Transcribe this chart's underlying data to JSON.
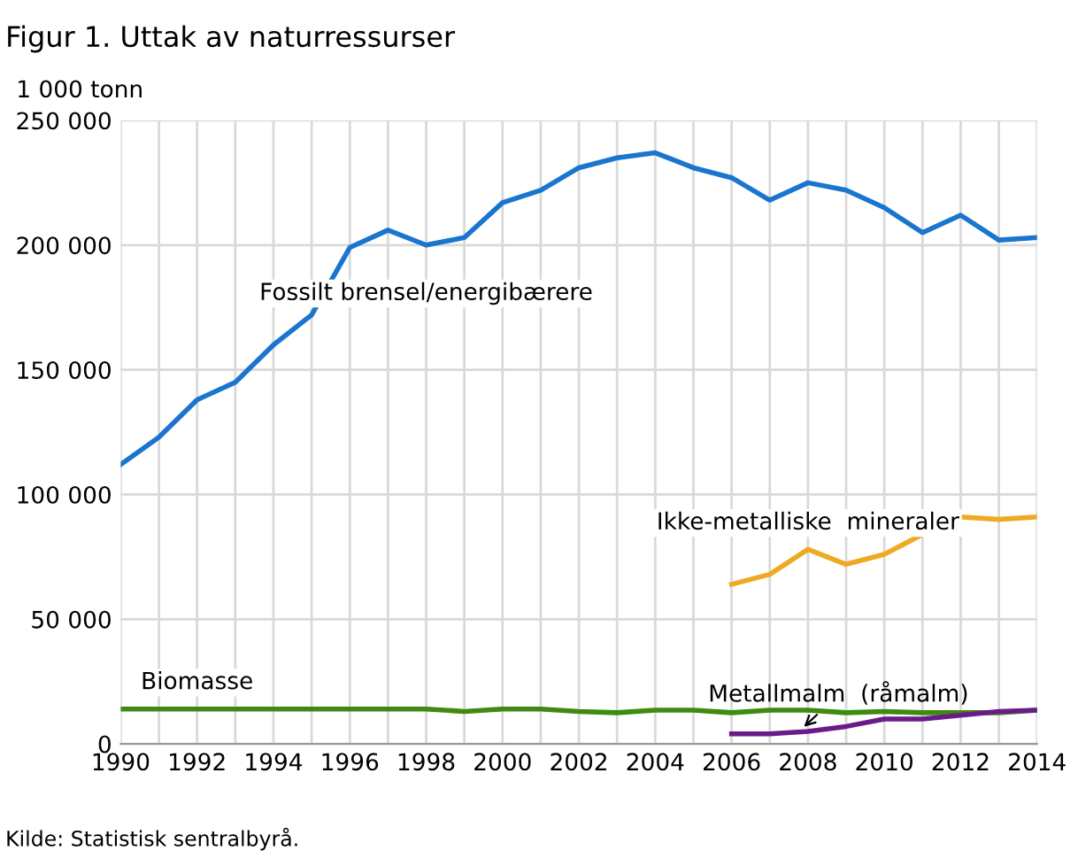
{
  "chart_data": {
    "type": "line",
    "title": "Figur 1. Uttak av naturressurser",
    "ylabel": "1 000 tonn",
    "x": [
      1990,
      1991,
      1992,
      1993,
      1994,
      1995,
      1996,
      1997,
      1998,
      1999,
      2000,
      2001,
      2002,
      2003,
      2004,
      2005,
      2006,
      2007,
      2008,
      2009,
      2010,
      2011,
      2012,
      2013,
      2014
    ],
    "series": [
      {
        "name": "Fossilt brensel/energibærere",
        "color": "#1a75cf",
        "values": [
          112000,
          123000,
          138000,
          145000,
          160000,
          172000,
          199000,
          206000,
          200000,
          203000,
          217000,
          222000,
          231000,
          235000,
          237000,
          231000,
          227000,
          218000,
          225000,
          222000,
          215000,
          205000,
          212000,
          202000,
          203000
        ]
      },
      {
        "name": "Ikke-metalliske  mineraler",
        "color": "#eeaa22",
        "values": [
          null,
          null,
          null,
          null,
          null,
          null,
          null,
          null,
          null,
          null,
          null,
          null,
          null,
          null,
          null,
          null,
          64000,
          68000,
          78000,
          72000,
          76000,
          84000,
          91000,
          90000,
          91000
        ]
      },
      {
        "name": "Biomasse",
        "color": "#3d8b0f",
        "values": [
          14000,
          14000,
          14000,
          14000,
          14000,
          14000,
          14000,
          14000,
          14000,
          13000,
          14000,
          14000,
          13000,
          12500,
          13500,
          13500,
          12500,
          13500,
          13500,
          12500,
          13000,
          12500,
          12500,
          12500,
          13500
        ]
      },
      {
        "name": "Metallmalm  (råmalm)",
        "color": "#6a1b8a",
        "values": [
          null,
          null,
          null,
          null,
          null,
          null,
          null,
          null,
          null,
          null,
          null,
          null,
          null,
          null,
          null,
          null,
          4000,
          4000,
          5000,
          7000,
          10000,
          10000,
          11500,
          13000,
          13500
        ]
      }
    ],
    "xlim": [
      1990,
      2014
    ],
    "ylim": [
      0,
      250000
    ],
    "xticks": [
      1990,
      {
        "value": 1991,
        "label": null
      },
      1992,
      {
        "value": 1993,
        "label": null
      },
      1994,
      {
        "value": 1995,
        "label": null
      },
      1996,
      {
        "value": 1997,
        "label": null
      },
      1998,
      {
        "value": 1999,
        "label": null
      },
      2000,
      {
        "value": 2001,
        "label": null
      },
      2002,
      {
        "value": 2003,
        "label": null
      },
      2004,
      {
        "value": 2005,
        "label": null
      },
      2006,
      {
        "value": 2007,
        "label": null
      },
      2008,
      {
        "value": 2009,
        "label": null
      },
      2010,
      {
        "value": 2011,
        "label": null
      },
      2012,
      {
        "value": 2013,
        "label": null
      },
      2014
    ],
    "yticks": [
      {
        "value": 0,
        "label": "0"
      },
      {
        "value": 50000,
        "label": "50 000"
      },
      {
        "value": 100000,
        "label": "100 000"
      },
      {
        "value": 150000,
        "label": "150 000"
      },
      {
        "value": 200000,
        "label": "200 000"
      },
      {
        "value": 250000,
        "label": "250 000"
      }
    ],
    "grid": true,
    "legend": false,
    "marker": "none",
    "line_style": "solid",
    "annotations": [
      "Kilde: Statistisk sentralbyrå."
    ]
  }
}
